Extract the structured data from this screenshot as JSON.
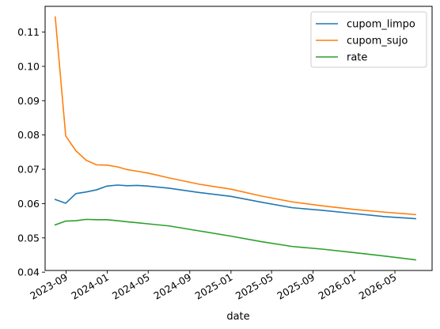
{
  "chart_data": {
    "type": "line",
    "xlabel": "date",
    "ylabel": "",
    "title": "",
    "ylim": [
      0.0405,
      0.1175
    ],
    "xlim": [
      "2023-07-01",
      "2026-08-19"
    ],
    "x_ticks": [
      "2023-09-01",
      "2024-01-01",
      "2024-05-01",
      "2024-09-01",
      "2025-01-01",
      "2025-05-01",
      "2025-09-01",
      "2026-01-01",
      "2026-05-01"
    ],
    "x_tick_labels": [
      "2023-09",
      "2024-01",
      "2024-05",
      "2024-09",
      "2025-01",
      "2025-05",
      "2025-09",
      "2026-01",
      "2026-05"
    ],
    "y_ticks": [
      0.04,
      0.05,
      0.06,
      0.07,
      0.08,
      0.09,
      0.1,
      0.11
    ],
    "y_tick_labels": [
      "0.04",
      "0.05",
      "0.06",
      "0.07",
      "0.08",
      "0.09",
      "0.10",
      "0.11"
    ],
    "grid": false,
    "legend_position": "top-right",
    "x": [
      "2023-07-31",
      "2023-08-31",
      "2023-09-30",
      "2023-10-31",
      "2023-11-30",
      "2023-12-31",
      "2024-01-31",
      "2024-02-29",
      "2024-03-31",
      "2024-04-30",
      "2024-07-01",
      "2024-10-01",
      "2025-01-01",
      "2025-04-01",
      "2025-07-01",
      "2025-10-01",
      "2026-01-01",
      "2026-04-01",
      "2026-07-01"
    ],
    "series": [
      {
        "name": "cupom_limpo",
        "color": "#1f77b4",
        "values": [
          0.0612,
          0.0601,
          0.0629,
          0.0634,
          0.064,
          0.0651,
          0.0654,
          0.0652,
          0.0653,
          0.0651,
          0.0645,
          0.0632,
          0.0621,
          0.0604,
          0.0588,
          0.058,
          0.0571,
          0.0562,
          0.0556
        ]
      },
      {
        "name": "cupom_sujo",
        "color": "#ff7f0e",
        "values": [
          0.1144,
          0.0797,
          0.0754,
          0.0726,
          0.0713,
          0.0712,
          0.0707,
          0.0699,
          0.0694,
          0.0689,
          0.0675,
          0.0656,
          0.0642,
          0.0622,
          0.0605,
          0.0593,
          0.0583,
          0.0575,
          0.0568
        ]
      },
      {
        "name": "rate",
        "color": "#2ca02c",
        "values": [
          0.0538,
          0.0549,
          0.055,
          0.0554,
          0.0553,
          0.0553,
          0.055,
          0.0547,
          0.0544,
          0.0541,
          0.0535,
          0.052,
          0.0505,
          0.0489,
          0.0475,
          0.0467,
          0.0457,
          0.0447,
          0.0436
        ]
      }
    ]
  }
}
